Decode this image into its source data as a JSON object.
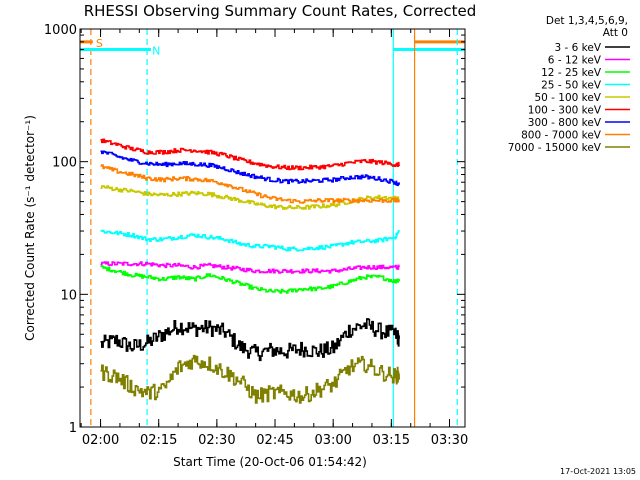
{
  "chart_data": {
    "type": "line",
    "title": "RHESSI Observing Summary Count Rates, Corrected",
    "xlabel": "Start Time (20-Oct-06 01:54:42)",
    "ylabel": "Corrected Count Rate (s⁻¹ detector⁻¹)",
    "x_ticks": [
      "02:00",
      "02:15",
      "02:30",
      "02:45",
      "03:00",
      "03:15",
      "03:30"
    ],
    "y_ticks": [
      "1",
      "10",
      "100",
      "1000"
    ],
    "y_scale": "log",
    "ylim": [
      1,
      1000
    ],
    "xlim": [
      "01:54:42",
      "03:34:00"
    ],
    "grid": false,
    "legend_position": "top-right",
    "legend_header": [
      "Det 1,3,4,5,6,9,",
      "Att 0"
    ],
    "timestamp": "17-Oct-2021 13:05",
    "markers": [
      {
        "label": "S",
        "time": "01:57:30",
        "color": "#ff8000",
        "style": "dashed",
        "level": 800,
        "extent": [
          "01:54:42",
          "01:58:00"
        ]
      },
      {
        "label": "N",
        "time": "02:12:00",
        "color": "#00ffff",
        "style": "dashed",
        "level": 700,
        "extent": [
          "01:54:42",
          "02:13:00"
        ]
      },
      {
        "label": "",
        "time": "03:15:30",
        "color": "#00ffff",
        "style": "solid",
        "level": 700,
        "extent": [
          "03:15:30",
          "03:34:00"
        ]
      },
      {
        "label": "",
        "time": "03:21:00",
        "color": "#ff8000",
        "style": "solid",
        "level": 800,
        "extent": [
          "03:21:00",
          "03:34:00"
        ]
      },
      {
        "label": "",
        "time": "03:32:00",
        "color": "#00ffff",
        "style": "dashed",
        "level": 700,
        "extent": [
          "03:32:00",
          "03:34:00"
        ]
      }
    ],
    "series": [
      {
        "name": "3 - 6 keV",
        "color": "#000000",
        "times": [
          "02:00",
          "02:04",
          "02:08",
          "02:12",
          "02:16",
          "02:20",
          "02:24",
          "02:28",
          "02:32",
          "02:36",
          "02:40",
          "02:44",
          "02:48",
          "02:52",
          "02:56",
          "03:00",
          "03:04",
          "03:08",
          "03:12",
          "03:16",
          "03:17"
        ],
        "values": [
          4.2,
          4.5,
          4.0,
          4.3,
          5.0,
          5.8,
          5.5,
          5.6,
          5.2,
          4.0,
          3.6,
          3.8,
          3.7,
          3.9,
          3.7,
          3.9,
          5.4,
          5.9,
          5.3,
          5.0,
          4.6
        ]
      },
      {
        "name": "6 - 12 keV",
        "color": "#ff00ff",
        "times": [
          "02:00",
          "02:04",
          "02:08",
          "02:12",
          "02:16",
          "02:20",
          "02:24",
          "02:28",
          "02:32",
          "02:36",
          "02:40",
          "02:44",
          "02:48",
          "02:52",
          "02:56",
          "03:00",
          "03:04",
          "03:08",
          "03:12",
          "03:16",
          "03:17"
        ],
        "values": [
          17,
          17,
          17,
          17,
          16.5,
          16.5,
          16,
          16.5,
          16,
          15.5,
          15,
          15,
          15,
          15,
          15,
          15,
          15.5,
          16,
          16,
          16,
          16
        ]
      },
      {
        "name": "12 - 25 keV",
        "color": "#00ff00",
        "times": [
          "02:00",
          "02:04",
          "02:08",
          "02:12",
          "02:16",
          "02:20",
          "02:24",
          "02:28",
          "02:32",
          "02:36",
          "02:40",
          "02:44",
          "02:48",
          "02:52",
          "02:56",
          "03:00",
          "03:04",
          "03:08",
          "03:12",
          "03:16",
          "03:17"
        ],
        "values": [
          16,
          15,
          14,
          13.5,
          13,
          13.5,
          13,
          14,
          13,
          12,
          11,
          10.5,
          10.5,
          11,
          11,
          11.5,
          12.5,
          13.5,
          13.5,
          12.5,
          13
        ]
      },
      {
        "name": "25 - 50 keV",
        "color": "#00ffff",
        "times": [
          "02:00",
          "02:04",
          "02:08",
          "02:12",
          "02:16",
          "02:20",
          "02:24",
          "02:28",
          "02:32",
          "02:36",
          "02:40",
          "02:44",
          "02:48",
          "02:52",
          "02:56",
          "03:00",
          "03:04",
          "03:08",
          "03:12",
          "03:16",
          "03:17"
        ],
        "values": [
          30,
          29,
          28,
          26,
          26,
          27,
          28,
          27,
          26,
          24,
          23,
          23,
          22,
          22,
          22.5,
          23,
          24.5,
          25,
          25.5,
          27,
          30
        ]
      },
      {
        "name": "50 - 100 keV",
        "color": "#c8c800",
        "times": [
          "02:00",
          "02:04",
          "02:08",
          "02:12",
          "02:16",
          "02:20",
          "02:24",
          "02:28",
          "02:32",
          "02:36",
          "02:40",
          "02:44",
          "02:48",
          "02:52",
          "02:56",
          "03:00",
          "03:04",
          "03:08",
          "03:12",
          "03:16",
          "03:17"
        ],
        "values": [
          65,
          62,
          60,
          57,
          56,
          57,
          58,
          57,
          54,
          51,
          48,
          46,
          45,
          45,
          46,
          47,
          50,
          53,
          54,
          53,
          52
        ]
      },
      {
        "name": "100 - 300 keV",
        "color": "#ff0000",
        "times": [
          "02:00",
          "02:04",
          "02:08",
          "02:12",
          "02:16",
          "02:20",
          "02:24",
          "02:28",
          "02:32",
          "02:36",
          "02:40",
          "02:44",
          "02:48",
          "02:52",
          "02:56",
          "03:00",
          "03:04",
          "03:08",
          "03:12",
          "03:16",
          "03:17"
        ],
        "values": [
          145,
          135,
          125,
          118,
          118,
          122,
          122,
          118,
          112,
          103,
          97,
          92,
          90,
          90,
          91,
          93,
          98,
          101,
          99,
          95,
          95
        ]
      },
      {
        "name": "300 - 800 keV",
        "color": "#0000ff",
        "times": [
          "02:00",
          "02:04",
          "02:08",
          "02:12",
          "02:16",
          "02:20",
          "02:24",
          "02:28",
          "02:32",
          "02:36",
          "02:40",
          "02:44",
          "02:48",
          "02:52",
          "02:56",
          "03:00",
          "03:04",
          "03:08",
          "03:12",
          "03:16",
          "03:17"
        ],
        "values": [
          120,
          110,
          102,
          97,
          95,
          97,
          96,
          94,
          89,
          82,
          77,
          73,
          71,
          71,
          72,
          73,
          76,
          77,
          74,
          70,
          67
        ]
      },
      {
        "name": "800 - 7000 keV",
        "color": "#ff8000",
        "times": [
          "02:00",
          "02:04",
          "02:08",
          "02:12",
          "02:16",
          "02:20",
          "02:24",
          "02:28",
          "02:32",
          "02:36",
          "02:40",
          "02:44",
          "02:48",
          "02:52",
          "02:56",
          "03:00",
          "03:04",
          "03:08",
          "03:12",
          "03:16",
          "03:17"
        ],
        "values": [
          92,
          85,
          80,
          75,
          73,
          75,
          74,
          72,
          68,
          62,
          57,
          53,
          51,
          50,
          51,
          51,
          51,
          51,
          51,
          51,
          51
        ]
      },
      {
        "name": "7000 - 15000 keV",
        "color": "#808000",
        "times": [
          "02:00",
          "02:04",
          "02:08",
          "02:12",
          "02:16",
          "02:20",
          "02:24",
          "02:28",
          "02:32",
          "02:36",
          "02:40",
          "02:44",
          "02:48",
          "02:52",
          "02:56",
          "03:00",
          "03:04",
          "03:08",
          "03:12",
          "03:16",
          "03:17"
        ],
        "values": [
          2.6,
          2.4,
          2.0,
          1.8,
          1.9,
          2.8,
          3.2,
          3.0,
          2.6,
          2.2,
          1.7,
          1.8,
          1.8,
          1.7,
          1.9,
          2.1,
          2.8,
          3.0,
          2.6,
          2.4,
          2.5
        ]
      }
    ]
  }
}
